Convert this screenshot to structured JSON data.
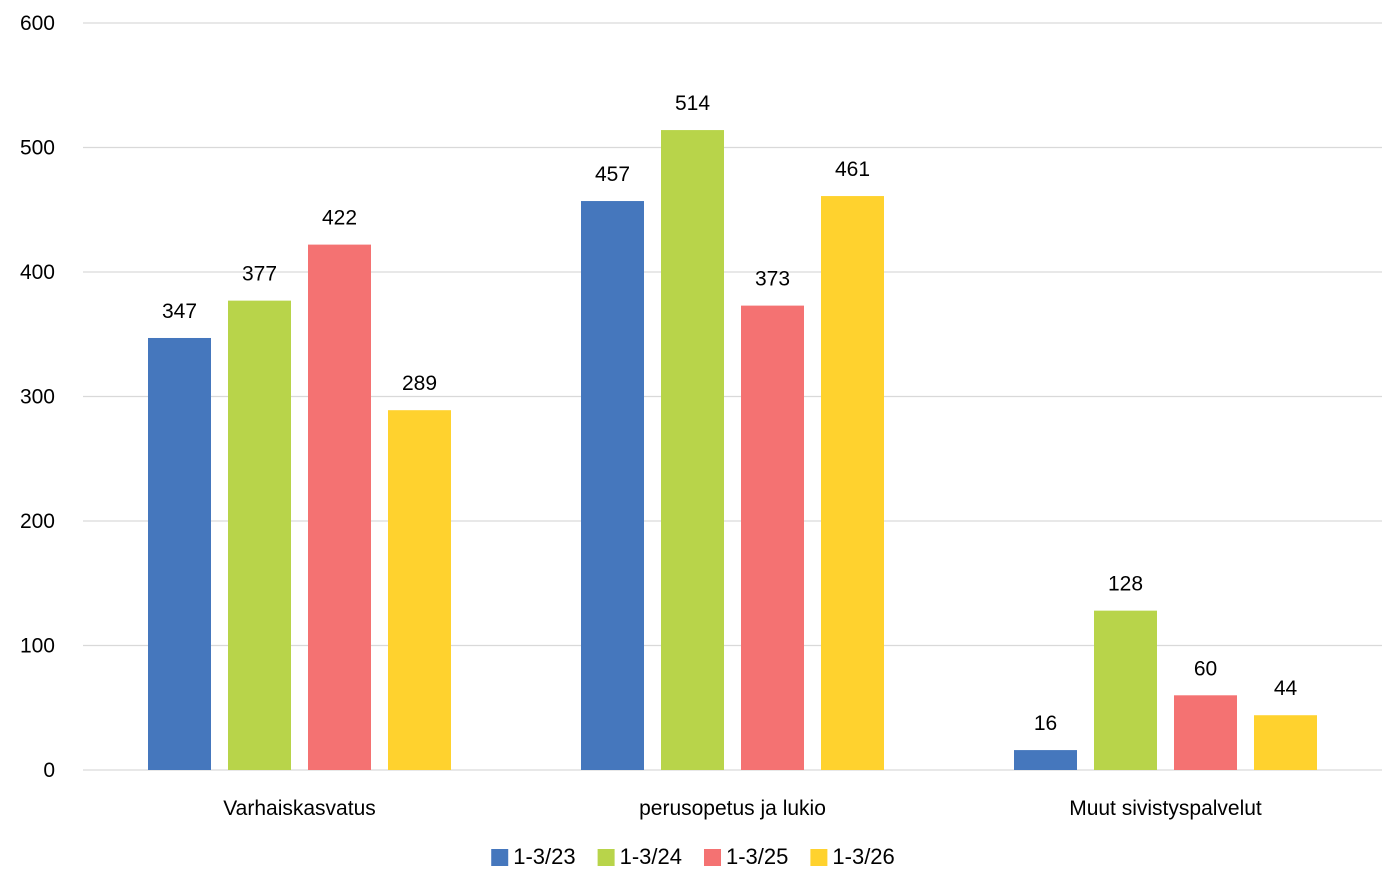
{
  "chart_data": {
    "type": "bar",
    "title": "",
    "xlabel": "",
    "ylabel": "",
    "ylim": [
      0,
      600
    ],
    "yticks": [
      0,
      100,
      200,
      300,
      400,
      500,
      600
    ],
    "grid": true,
    "legend_position": "bottom",
    "categories": [
      "Varhaiskasvatus",
      "perusopetus ja lukio",
      "Muut sivistyspalvelut"
    ],
    "series": [
      {
        "name": "1-3/23",
        "color": "#4577bd",
        "values": [
          347,
          457,
          16
        ]
      },
      {
        "name": "1-3/24",
        "color": "#b8d44a",
        "values": [
          377,
          514,
          128
        ]
      },
      {
        "name": "1-3/25",
        "color": "#f47272",
        "values": [
          422,
          373,
          60
        ]
      },
      {
        "name": "1-3/26",
        "color": "#ffd22e",
        "values": [
          289,
          461,
          44
        ]
      }
    ]
  }
}
